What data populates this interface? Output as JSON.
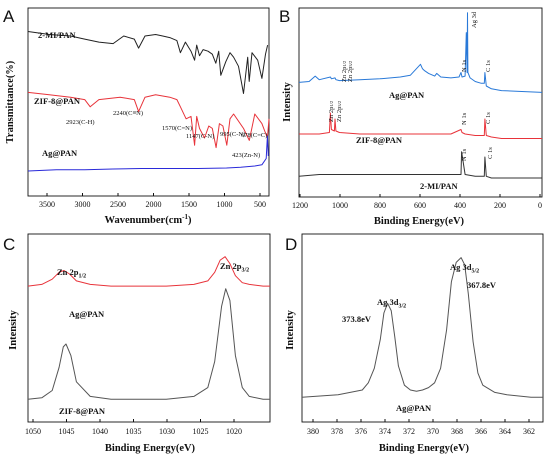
{
  "chart_data": [
    {
      "panel": "A",
      "type": "line",
      "xlabel": "Wavenumber(cm⁻¹)",
      "ylabel": "Transmittance(%)",
      "xlim": [
        3800,
        400
      ],
      "xticks": [
        3500,
        3000,
        2500,
        2000,
        1500,
        1000,
        500
      ],
      "series": [
        {
          "name": "2-MI/PAN",
          "color": "#222222",
          "x": [
            3800,
            3500,
            3200,
            3000,
            2800,
            2600,
            2450,
            2300,
            2240,
            2150,
            2000,
            1900,
            1800,
            1700,
            1650,
            1580,
            1500,
            1450,
            1420,
            1380,
            1330,
            1260,
            1200,
            1150,
            1110,
            1080,
            1010,
            950,
            900,
            830,
            760,
            700,
            680,
            640,
            560,
            500,
            450,
            420
          ],
          "y": [
            99,
            97,
            96,
            94,
            92,
            91,
            96,
            94,
            88,
            96,
            97,
            96,
            95,
            93,
            85,
            92,
            86,
            80,
            90,
            83,
            87,
            86,
            84,
            78,
            86,
            70,
            79,
            85,
            82,
            76,
            58,
            82,
            66,
            85,
            80,
            68,
            84,
            90
          ]
        },
        {
          "name": "ZIF-8@PAN",
          "color": "#e8333a",
          "x": [
            3800,
            3500,
            3200,
            3000,
            2923,
            2800,
            2500,
            2300,
            2240,
            2150,
            2000,
            1800,
            1700,
            1650,
            1570,
            1500,
            1450,
            1420,
            1380,
            1310,
            1250,
            1200,
            1147,
            1100,
            1050,
            995,
            950,
            900,
            760,
            678,
            600,
            500,
            423,
            400
          ],
          "y": [
            99,
            98,
            97,
            96,
            93,
            96,
            97,
            96,
            91,
            97,
            98,
            97,
            96,
            93,
            88,
            89,
            77,
            89,
            84,
            80,
            85,
            84,
            76,
            86,
            85,
            77,
            88,
            90,
            84,
            79,
            90,
            86,
            80,
            88
          ]
        },
        {
          "name": "Ag@PAN",
          "color": "#2a2ad9",
          "x": [
            3800,
            3400,
            3000,
            2600,
            2200,
            1800,
            1400,
            1000,
            800,
            600,
            500,
            440,
            423,
            410
          ],
          "y": [
            98,
            98.5,
            98.5,
            98.8,
            99,
            99,
            99,
            99.2,
            99.5,
            100,
            100.5,
            103,
            112,
            104
          ]
        }
      ],
      "annotations": [
        "2923(C-H)",
        "2240(C≡N)",
        "1570(C=N)",
        "1147(C-N)",
        "995(C-N)",
        "678(C=C)",
        "423(Zn-N)"
      ]
    },
    {
      "panel": "B",
      "type": "line",
      "xlabel": "Binding Energy(eV)",
      "ylabel": "Intensity",
      "xlim": [
        1200,
        0
      ],
      "xticks": [
        1200,
        1000,
        800,
        600,
        400,
        200,
        0
      ],
      "series": [
        {
          "name": "Ag@PAN",
          "color": "#2979d8",
          "x": [
            1200,
            1150,
            1120,
            1100,
            1045,
            1040,
            1022,
            1018,
            1000,
            900,
            800,
            700,
            650,
            600,
            590,
            580,
            560,
            530,
            520,
            500,
            450,
            410,
            400,
            395,
            380,
            374,
            370,
            368,
            366,
            355,
            330,
            300,
            285,
            282,
            275,
            250,
            200,
            100,
            0
          ],
          "y": [
            15,
            16,
            22,
            18,
            21,
            19,
            20,
            18,
            17,
            18,
            19,
            21,
            23,
            35,
            30,
            28,
            25,
            22,
            25,
            21,
            20,
            21,
            26,
            21,
            22,
            70,
            26,
            92,
            26,
            20,
            16,
            14,
            14,
            26,
            11,
            8,
            6,
            5,
            4
          ]
        },
        {
          "name": "ZIF-8@PAN",
          "color": "#e8333a",
          "x": [
            1200,
            1100,
            1050,
            1045,
            1040,
            1025,
            1022,
            1018,
            1000,
            900,
            800,
            700,
            600,
            500,
            450,
            400,
            395,
            380,
            330,
            300,
            285,
            282,
            275,
            250,
            200,
            100,
            0
          ],
          "y": [
            4,
            4,
            5,
            18,
            7,
            6,
            14,
            6,
            5,
            4,
            4,
            4,
            4,
            4,
            4,
            7,
            5,
            4,
            3,
            3,
            3,
            14,
            3,
            2,
            1,
            1,
            1
          ]
        },
        {
          "name": "2-MI/PAN",
          "color": "#333333",
          "x": [
            1200,
            1100,
            800,
            600,
            500,
            450,
            400,
            397,
            380,
            330,
            300,
            285,
            282,
            275,
            250,
            200,
            100,
            0
          ],
          "y": [
            1,
            2,
            2,
            2,
            2,
            2,
            2,
            15,
            2,
            1,
            1,
            1,
            12,
            1,
            0,
            0,
            0,
            0
          ]
        }
      ],
      "peak_labels": [
        "Ag 3d",
        "N 1s",
        "C 1s",
        "Zn 2p1/2",
        "Zn 2p3/2",
        "Zn 2p1/2",
        "Zn 2p3/2",
        "N 1s",
        "C 1s",
        "N 1s",
        "C 1s"
      ]
    },
    {
      "panel": "C",
      "type": "line",
      "xlabel": "Binding Energy(eV)",
      "ylabel": "Intensity",
      "xlim": [
        1050,
        1015
      ],
      "xticks": [
        1050,
        1045,
        1040,
        1035,
        1030,
        1025,
        1020
      ],
      "series": [
        {
          "name": "Ag@PAN",
          "color": "#e8333a",
          "x": [
            1050,
            1048,
            1046.5,
            1045.5,
            1044.8,
            1044,
            1043,
            1041,
            1038,
            1035,
            1030,
            1026,
            1024,
            1023,
            1022.2,
            1021.5,
            1020.8,
            1020,
            1019,
            1018,
            1016,
            1015
          ],
          "y": [
            18,
            19,
            22,
            26,
            27,
            25,
            21,
            19,
            18,
            18,
            18,
            19,
            21,
            26,
            33,
            35,
            31,
            24,
            20,
            19,
            18,
            18
          ]
        },
        {
          "name": "ZIF-8@PAN",
          "color": "#555555",
          "x": [
            1050,
            1048,
            1046.5,
            1045.5,
            1044.9,
            1044.5,
            1043.8,
            1043,
            1041,
            1038,
            1035,
            1030,
            1026,
            1024,
            1023,
            1022,
            1021.4,
            1020.8,
            1020,
            1019,
            1018,
            1016,
            1015
          ],
          "y": [
            3,
            3.5,
            6,
            14,
            21,
            22,
            18,
            9,
            4,
            3,
            3,
            3,
            4,
            7,
            16,
            35,
            41,
            37,
            18,
            7,
            4,
            3,
            3
          ]
        }
      ],
      "labels": [
        "Zn 2p1/2",
        "Zn 2p3/2",
        "Ag@PAN",
        "ZIF-8@PAN"
      ]
    },
    {
      "panel": "D",
      "type": "line",
      "xlabel": "Binding Energy(eV)",
      "ylabel": "Intensity",
      "xlim": [
        381,
        361
      ],
      "xticks": [
        380,
        378,
        376,
        374,
        372,
        370,
        368,
        366,
        364,
        362
      ],
      "series": [
        {
          "name": "Ag@PAN",
          "color": "#555555",
          "x": [
            381,
            378,
            376,
            375.5,
            375,
            374.5,
            374.2,
            373.9,
            373.6,
            373.3,
            373,
            372.5,
            372,
            371.5,
            371,
            370.5,
            370,
            369.5,
            369,
            368.6,
            368.2,
            367.8,
            367.5,
            367.2,
            366.8,
            366.4,
            366,
            365,
            364,
            362,
            361
          ],
          "y": [
            2,
            3,
            5,
            8,
            14,
            26,
            37,
            41,
            38,
            27,
            15,
            7,
            5,
            4.5,
            5,
            6,
            8,
            14,
            30,
            50,
            58,
            60,
            57,
            45,
            25,
            12,
            7,
            4,
            3,
            2,
            2
          ]
        }
      ],
      "labels": [
        "Ag 3d3/2",
        "373.8eV",
        "Ag 3d5/2",
        "367.8eV",
        "Ag@PAN"
      ]
    }
  ],
  "text": {
    "A": {
      "panel": "A",
      "ylabel": "Transmittance(%)",
      "xlabel": "Wavenumber(cm",
      "xlabel_sup": "-1",
      "xlabel_end": ")",
      "s1": "2-MI/PAN",
      "s2": "ZIF-8@PAN",
      "s3": "Ag@PAN",
      "a1": "2923(C-H)",
      "a2": "2240(C≡N)",
      "a3": "1570(C=N)",
      "a4": "1147(C-N)",
      "a5": "995(C-N)",
      "a6": "678(C=C)",
      "a7": "423(Zn-N)",
      "ticks": [
        "3500",
        "3000",
        "2500",
        "2000",
        "1500",
        "1000",
        "500"
      ]
    },
    "B": {
      "panel": "B",
      "ylabel": "Intensity",
      "xlabel": "Binding Energy(eV)",
      "s1": "Ag@PAN",
      "s2": "ZIF-8@PAN",
      "s3": "2-MI/PAN",
      "ag3d": "Ag 3d",
      "n1s": "N 1s",
      "c1s": "C 1s",
      "zn": "Zn 2p",
      "h": "1/2",
      "t": "3/2",
      "ticks": [
        "1200",
        "1000",
        "800",
        "600",
        "400",
        "200",
        "0"
      ]
    },
    "C": {
      "panel": "C",
      "ylabel": "Intensity",
      "xlabel": "Binding Energy(eV)",
      "zn": "Zn 2p",
      "h": "1/2",
      "t": "3/2",
      "s1": "Ag@PAN",
      "s2": "ZIF-8@PAN",
      "ticks": [
        "1050",
        "1045",
        "1040",
        "1035",
        "1030",
        "1025",
        "1020"
      ]
    },
    "D": {
      "panel": "D",
      "ylabel": "Intensity",
      "xlabel": "Binding Energy(eV)",
      "ag3d": "Ag 3d",
      "t": "3/2",
      "f": "5/2",
      "e1": "373.8eV",
      "e2": "367.8eV",
      "s1": "Ag@PAN",
      "ticks": [
        "380",
        "378",
        "376",
        "374",
        "372",
        "370",
        "368",
        "366",
        "364",
        "362"
      ]
    }
  }
}
